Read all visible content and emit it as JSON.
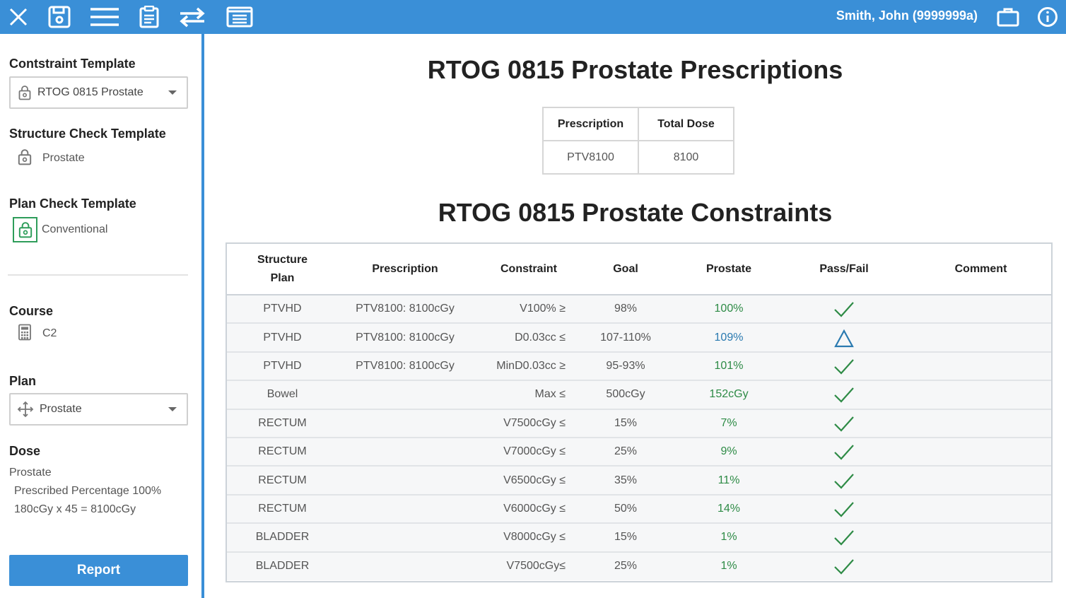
{
  "header": {
    "user_name": "Smith, John (9999999a)",
    "icons": [
      "close-icon",
      "save-icon",
      "menu-icon",
      "clipboard-icon",
      "swap-icon",
      "list-icon",
      "briefcase-icon",
      "info-icon"
    ]
  },
  "sidebar": {
    "constraint_template_label": "Contstraint Template",
    "constraint_template_value": "RTOG 0815 Prostate",
    "structure_check_label": "Structure Check Template",
    "structure_check_value": "Prostate",
    "plan_check_label": "Plan Check Template",
    "plan_check_value": "Conventional",
    "course_label": "Course",
    "course_value": "C2",
    "plan_label": "Plan",
    "plan_value": "Prostate",
    "dose_label": "Dose",
    "dose_name": "Prostate",
    "dose_percentage": "Prescribed Percentage 100%",
    "dose_fractionation": "180cGy x 45 = 8100cGy",
    "report_button": "Report"
  },
  "prescriptions": {
    "title": "RTOG 0815 Prostate Prescriptions",
    "headers": [
      "Prescription",
      "Total Dose"
    ],
    "rows": [
      [
        "PTV8100",
        "8100"
      ]
    ]
  },
  "constraints": {
    "title": "RTOG 0815 Prostate Constraints",
    "headers": {
      "structure_line1": "Structure",
      "structure_line2": "Plan",
      "prescription": "Prescription",
      "constraint": "Constraint",
      "goal": "Goal",
      "prostate": "Prostate",
      "passfail": "Pass/Fail",
      "comment": "Comment"
    },
    "rows": [
      {
        "structure": "PTVHD",
        "prescription": "PTV8100: 8100cGy",
        "constraint": "V100% ≥",
        "goal": "98%",
        "prostate": "100%",
        "status": "pass",
        "comment": ""
      },
      {
        "structure": "PTVHD",
        "prescription": "PTV8100: 8100cGy",
        "constraint": "D0.03cc ≤",
        "goal": "107-110%",
        "prostate": "109%",
        "status": "warning",
        "comment": ""
      },
      {
        "structure": "PTVHD",
        "prescription": "PTV8100: 8100cGy",
        "constraint": "MinD0.03cc ≥",
        "goal": "95-93%",
        "prostate": "101%",
        "status": "pass",
        "comment": ""
      },
      {
        "structure": "Bowel",
        "prescription": "",
        "constraint": "Max ≤",
        "goal": "500cGy",
        "prostate": "152cGy",
        "status": "pass",
        "comment": ""
      },
      {
        "structure": "RECTUM",
        "prescription": "",
        "constraint": "V7500cGy ≤",
        "goal": "15%",
        "prostate": "7%",
        "status": "pass",
        "comment": ""
      },
      {
        "structure": "RECTUM",
        "prescription": "",
        "constraint": "V7000cGy ≤",
        "goal": "25%",
        "prostate": "9%",
        "status": "pass",
        "comment": ""
      },
      {
        "structure": "RECTUM",
        "prescription": "",
        "constraint": "V6500cGy ≤",
        "goal": "35%",
        "prostate": "11%",
        "status": "pass",
        "comment": ""
      },
      {
        "structure": "RECTUM",
        "prescription": "",
        "constraint": "V6000cGy ≤",
        "goal": "50%",
        "prostate": "14%",
        "status": "pass",
        "comment": ""
      },
      {
        "structure": "BLADDER",
        "prescription": "",
        "constraint": "V8000cGy ≤",
        "goal": "15%",
        "prostate": "1%",
        "status": "pass",
        "comment": ""
      },
      {
        "structure": "BLADDER",
        "prescription": "",
        "constraint": "V7500cGy≤",
        "goal": "25%",
        "prostate": "1%",
        "status": "pass",
        "comment": ""
      }
    ]
  },
  "colors": {
    "accent": "#3a8fd7",
    "pass": "#2e8b46",
    "warning": "#2a7ab0"
  }
}
